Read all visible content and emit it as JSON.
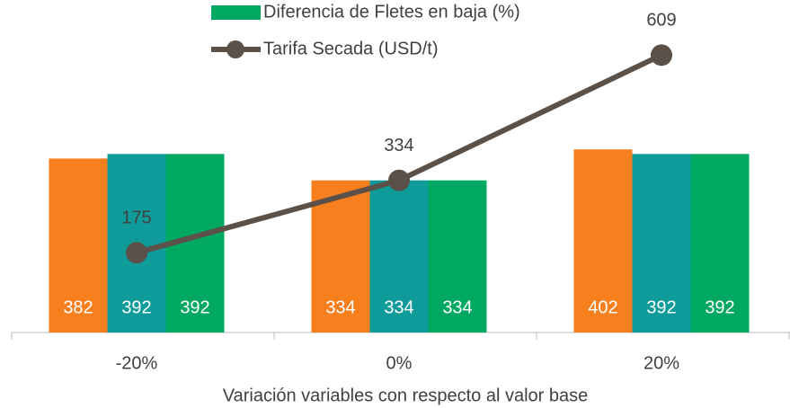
{
  "chart_data": {
    "type": "bar",
    "x_label": "Variación variables con respecto al valor base",
    "categories": [
      "-20%",
      "0%",
      "20%"
    ],
    "ylim": [
      0,
      730
    ],
    "series": [
      {
        "color": "#f77f1e",
        "values": [
          382,
          334,
          402
        ]
      },
      {
        "color": "#0e9b9a",
        "values": [
          392,
          334,
          392
        ]
      },
      {
        "name": "Diferencia de Fletes en baja (%)",
        "color": "#00a862",
        "values": [
          392,
          334,
          392
        ]
      },
      {
        "name": "Tarifa Secada (USD/t)",
        "type": "line",
        "color": "#5b5148",
        "values": [
          175,
          334,
          609
        ]
      }
    ]
  }
}
